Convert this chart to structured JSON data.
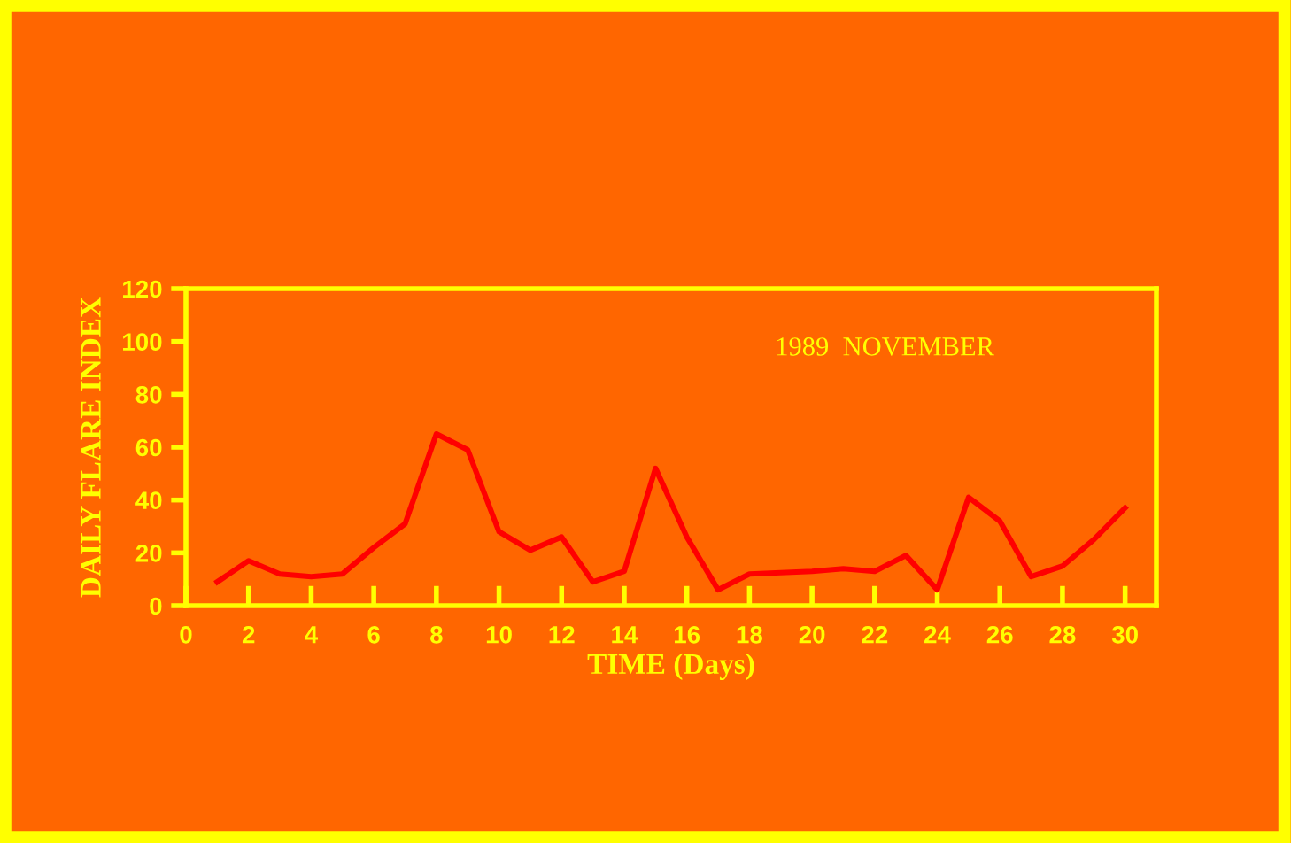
{
  "chart_data": {
    "type": "line",
    "xlabel": "TIME (Days)",
    "ylabel": "DAILY FLARE INDEX",
    "annotations": [
      "1989  NOVEMBER"
    ],
    "x": [
      1,
      2,
      3,
      4,
      5,
      6,
      7,
      8,
      9,
      10,
      11,
      12,
      13,
      14,
      15,
      16,
      17,
      18,
      19,
      20,
      21,
      22,
      23,
      24,
      25,
      26,
      27,
      28,
      29,
      30
    ],
    "series": [
      {
        "color": "#ff0000",
        "values": [
          9,
          17,
          12,
          11,
          12,
          22,
          31,
          65,
          59,
          28,
          21,
          26,
          9,
          13,
          52,
          26,
          6,
          12,
          12.5,
          13,
          14,
          13,
          19,
          6,
          41,
          32,
          11,
          15,
          25,
          37
        ]
      }
    ],
    "xlim": [
      0,
      31
    ],
    "ylim": [
      0,
      120
    ],
    "xticks": [
      0,
      2,
      4,
      6,
      8,
      10,
      12,
      14,
      16,
      18,
      20,
      22,
      24,
      26,
      28,
      30
    ],
    "yticks": [
      0,
      20,
      40,
      60,
      80,
      100,
      120
    ],
    "grid": false,
    "legend": false,
    "marker": "none",
    "line_style": "solid"
  }
}
